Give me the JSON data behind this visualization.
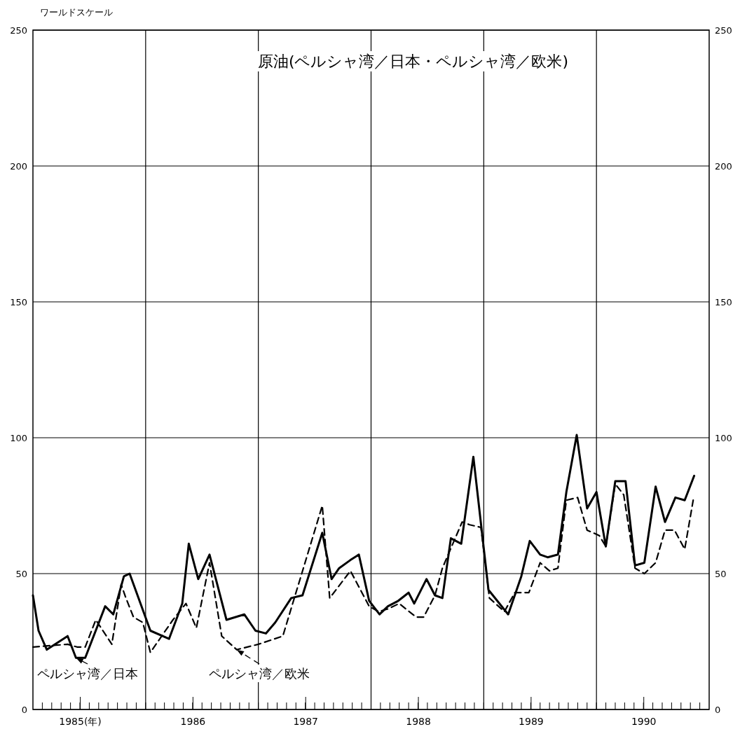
{
  "chart_data": {
    "type": "line",
    "title": "原油(ペルシャ湾／日本・ペルシャ湾／欧米)",
    "ylabel": "ワールドスケール",
    "xlim": [
      1985,
      1991
    ],
    "xticks": [
      {
        "value": 1985.42,
        "label": "1985(年)"
      },
      {
        "value": 1986,
        "label": null
      },
      {
        "value": 1986.42,
        "label": "1986"
      },
      {
        "value": 1987,
        "label": null
      },
      {
        "value": 1987.42,
        "label": "1987"
      },
      {
        "value": 1988,
        "label": null
      },
      {
        "value": 1988.42,
        "label": "1988"
      },
      {
        "value": 1989,
        "label": null
      },
      {
        "value": 1989.42,
        "label": "1989"
      },
      {
        "value": 1990,
        "label": null
      },
      {
        "value": 1990.42,
        "label": "1990"
      }
    ],
    "ylim": [
      0,
      250
    ],
    "yticks": [
      0,
      50,
      100,
      150,
      200,
      250
    ],
    "y2lim": [
      0,
      250
    ],
    "y2ticks": [
      0,
      50,
      100,
      150,
      200,
      250
    ],
    "grid": true,
    "legend": "bottom left",
    "series": [
      {
        "name": "ペルシャ湾／日本",
        "color": "#000000",
        "line_style": "solid",
        "x": [
          1985.0,
          1985.05,
          1985.123,
          1985.308,
          1985.382,
          1985.464,
          1985.641,
          1985.713,
          1985.807,
          1985.858,
          1986.042,
          1986.208,
          1986.325,
          1986.383,
          1986.467,
          1986.567,
          1986.717,
          1986.875,
          1986.975,
          1987.067,
          1987.15,
          1987.292,
          1987.392,
          1987.567,
          1987.65,
          1987.717,
          1987.817,
          1987.892,
          1987.983,
          1988.075,
          1988.15,
          1988.242,
          1988.333,
          1988.383,
          1988.492,
          1988.567,
          1988.633,
          1988.708,
          1988.8,
          1988.908,
          1989.042,
          1989.217,
          1989.333,
          1989.408,
          1989.5,
          1989.567,
          1989.658,
          1989.733,
          1989.825,
          1989.917,
          1990.0,
          1990.083,
          1990.167,
          1990.258,
          1990.342,
          1990.425,
          1990.525,
          1990.608,
          1990.7,
          1990.783,
          1990.867
        ],
        "values": [
          42,
          29,
          22,
          27,
          19,
          19,
          38,
          35,
          49,
          50,
          29,
          26,
          39,
          61,
          48,
          57,
          33,
          35,
          29,
          28,
          32,
          41,
          42,
          65,
          48,
          52,
          55,
          57,
          40,
          35,
          38,
          40,
          43,
          39,
          48,
          42,
          41,
          63,
          61,
          93,
          44,
          35,
          49,
          62,
          57,
          56,
          57,
          80,
          101,
          74,
          80,
          60,
          84,
          84,
          53,
          54,
          82,
          69,
          78,
          77,
          86
        ]
      },
      {
        "name": "ペルシャ湾／欧米",
        "color": "#000000",
        "line_style": "dashed",
        "x": [
          1985.0,
          1985.308,
          1985.392,
          1985.464,
          1985.558,
          1985.7,
          1985.783,
          1985.825,
          1985.892,
          1985.975,
          1986.042,
          1986.242,
          1986.358,
          1986.45,
          1986.567,
          1986.675,
          1986.808,
          1987.0,
          1987.217,
          1987.567,
          1987.633,
          1987.817,
          1987.983,
          1988.067,
          1988.15,
          1988.25,
          1988.4,
          1988.467,
          1988.567,
          1988.633,
          1988.808,
          1988.875,
          1988.975,
          1989.05,
          1989.183,
          1989.275,
          1989.4,
          1989.5,
          1989.583,
          1989.658,
          1989.733,
          1989.833,
          1989.917,
          1990.025,
          1990.083,
          1990.167,
          1990.242,
          1990.342,
          1990.425,
          1990.525,
          1990.608,
          1990.692,
          1990.783,
          1990.858
        ],
        "values": [
          23,
          24,
          23,
          23,
          33,
          24,
          46,
          41,
          34,
          32,
          21,
          33,
          39,
          30,
          54,
          27,
          22,
          24,
          27,
          75,
          41,
          51,
          38,
          36,
          37,
          39,
          34,
          34,
          42,
          52,
          69,
          68,
          67,
          41,
          36,
          43,
          43,
          54,
          51,
          52,
          77,
          78,
          66,
          64,
          60,
          83,
          79,
          52,
          50,
          54,
          66,
          66,
          59,
          77
        ]
      }
    ]
  }
}
